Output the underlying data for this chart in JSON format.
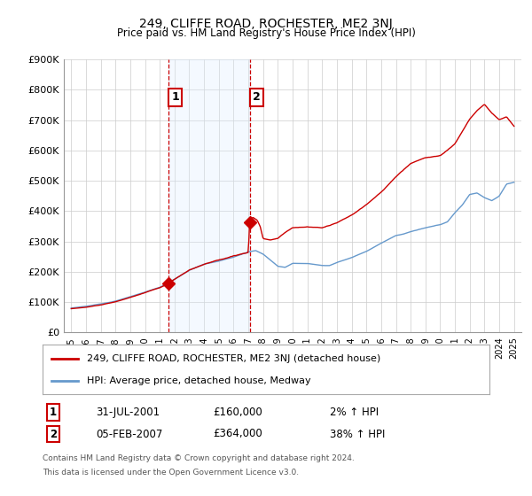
{
  "title": "249, CLIFFE ROAD, ROCHESTER, ME2 3NJ",
  "subtitle": "Price paid vs. HM Land Registry's House Price Index (HPI)",
  "ylabel_ticks": [
    "£0",
    "£100K",
    "£200K",
    "£300K",
    "£400K",
    "£500K",
    "£600K",
    "£700K",
    "£800K",
    "£900K"
  ],
  "ylim": [
    0,
    900000
  ],
  "xlim_start": 1994.5,
  "xlim_end": 2025.5,
  "sale1_x": 2001.58,
  "sale1_y": 160000,
  "sale1_label": "1",
  "sale1_date": "31-JUL-2001",
  "sale1_price": "£160,000",
  "sale1_hpi": "2% ↑ HPI",
  "sale2_x": 2007.09,
  "sale2_y": 364000,
  "sale2_label": "2",
  "sale2_date": "05-FEB-2007",
  "sale2_price": "£364,000",
  "sale2_hpi": "38% ↑ HPI",
  "line1_color": "#cc0000",
  "line2_color": "#6699cc",
  "shade_color": "#ddeeff",
  "vline_color": "#cc0000",
  "legend_label1": "249, CLIFFE ROAD, ROCHESTER, ME2 3NJ (detached house)",
  "legend_label2": "HPI: Average price, detached house, Medway",
  "footer1": "Contains HM Land Registry data © Crown copyright and database right 2024.",
  "footer2": "This data is licensed under the Open Government Licence v3.0.",
  "background_color": "#ffffff",
  "plot_bg_color": "#ffffff",
  "grid_color": "#cccccc"
}
